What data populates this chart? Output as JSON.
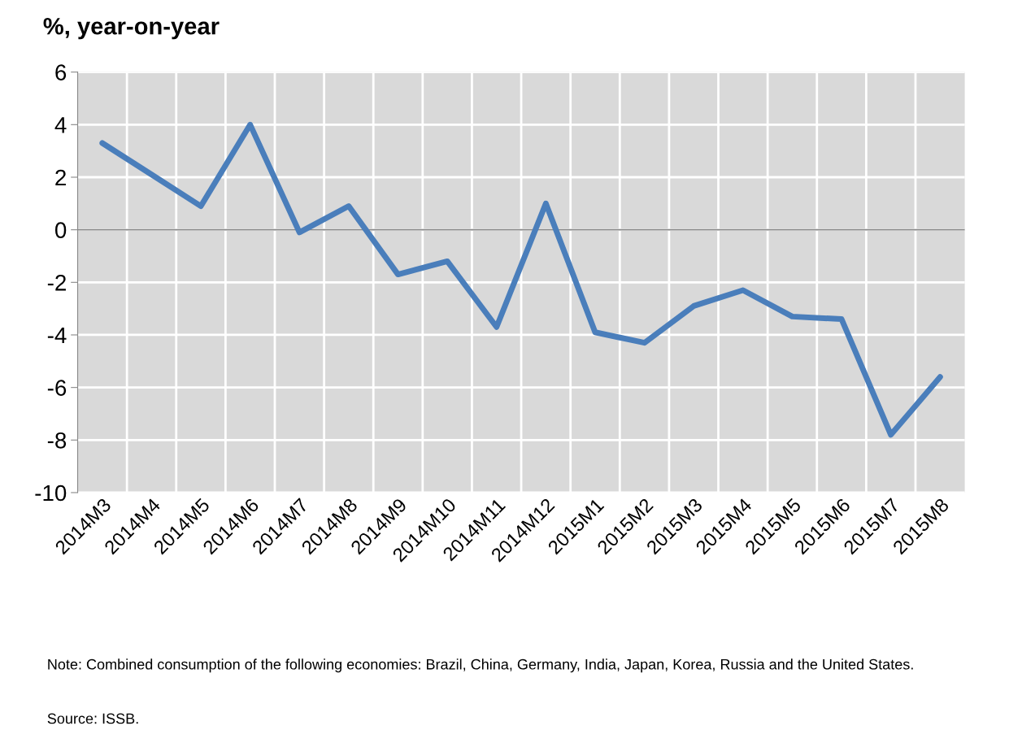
{
  "chart_data": {
    "type": "line",
    "title": "%, year-on-year",
    "categories": [
      "2014M3",
      "2014M4",
      "2014M5",
      "2014M6",
      "2014M7",
      "2014M8",
      "2014M9",
      "2014M10",
      "2014M11",
      "2014M12",
      "2015M1",
      "2015M2",
      "2015M3",
      "2015M4",
      "2015M5",
      "2015M6",
      "2015M7",
      "2015M8"
    ],
    "series": [
      {
        "color": "#4a7ebb",
        "values": [
          3.3,
          2.1,
          0.9,
          4.0,
          -0.1,
          0.9,
          -1.7,
          -1.2,
          -3.7,
          1.0,
          -3.9,
          -4.3,
          -2.9,
          -2.3,
          -3.3,
          -3.4,
          -7.8,
          -5.6
        ]
      }
    ],
    "ylim": [
      -10,
      6
    ],
    "yticks": [
      -10,
      -8,
      -6,
      -4,
      -2,
      0,
      2,
      4,
      6
    ],
    "grid": true,
    "marker": "none",
    "line_style": "solid",
    "legend": false,
    "annotations": [
      "Note: Combined consumption of the following economies: Brazil, China, Germany, India, Japan, Korea, Russia and the United States.",
      "Source: ISSB."
    ]
  }
}
